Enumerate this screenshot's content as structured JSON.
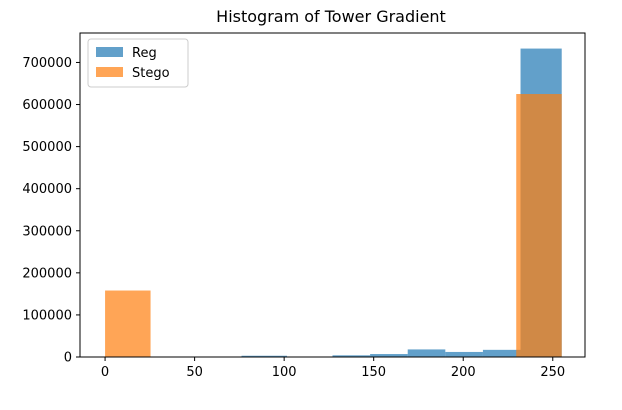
{
  "chart_data": {
    "type": "bar",
    "title": "Histogram of Tower Gradient",
    "xlabel": "",
    "ylabel": "",
    "xlim": [
      -14,
      268
    ],
    "ylim": [
      0,
      770000
    ],
    "xticks": [
      0,
      50,
      100,
      150,
      200,
      250
    ],
    "yticks": [
      0,
      100000,
      200000,
      300000,
      400000,
      500000,
      600000,
      700000
    ],
    "grid": false,
    "legend_position": "top-left",
    "series": [
      {
        "name": "Reg",
        "color": "#1f77b4",
        "opacity": 0.7,
        "bins": [
          {
            "x0": 0,
            "x1": 25.4,
            "value": 0
          },
          {
            "x0": 25.4,
            "x1": 50.8,
            "value": 0
          },
          {
            "x0": 50.8,
            "x1": 76.2,
            "value": 1000
          },
          {
            "x0": 76.2,
            "x1": 101.6,
            "value": 3000
          },
          {
            "x0": 101.6,
            "x1": 127,
            "value": 1000
          },
          {
            "x0": 127,
            "x1": 148,
            "value": 4000
          },
          {
            "x0": 148,
            "x1": 169,
            "value": 7000
          },
          {
            "x0": 169,
            "x1": 190,
            "value": 18000
          },
          {
            "x0": 190,
            "x1": 211,
            "value": 12000
          },
          {
            "x0": 211,
            "x1": 232,
            "value": 17000
          },
          {
            "x0": 232,
            "x1": 255,
            "value": 733000
          }
        ]
      },
      {
        "name": "Stego",
        "color": "#ff7f0e",
        "opacity": 0.7,
        "bins": [
          {
            "x0": 0,
            "x1": 25.4,
            "value": 158000
          },
          {
            "x0": 229.6,
            "x1": 255,
            "value": 625000
          }
        ]
      }
    ]
  }
}
